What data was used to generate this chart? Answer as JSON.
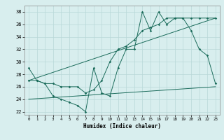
{
  "line1_x": [
    0,
    1,
    2,
    3,
    4,
    5,
    6,
    7,
    8,
    9,
    10,
    11,
    12,
    13,
    14,
    15,
    16,
    17,
    18,
    19,
    20,
    21,
    22,
    23
  ],
  "line1_y": [
    29,
    27,
    26.5,
    24.5,
    24,
    23.5,
    23,
    22,
    29,
    25,
    24.5,
    29,
    32,
    32,
    38,
    35,
    38,
    36,
    37,
    37,
    35,
    32,
    31,
    26.5
  ],
  "line2_x": [
    0,
    1,
    2,
    3,
    4,
    5,
    6,
    7,
    8,
    9,
    10,
    11,
    12,
    13,
    14,
    15,
    16,
    17,
    18,
    19,
    20,
    21,
    22,
    23
  ],
  "line2_y": [
    27,
    27,
    26.5,
    26.5,
    26,
    26,
    26,
    25,
    25.5,
    27,
    30,
    32,
    32.5,
    33.5,
    35,
    35.5,
    36,
    37,
    37,
    37,
    37,
    37,
    37,
    37
  ],
  "line3_x": [
    0,
    23
  ],
  "line3_y": [
    27,
    37
  ],
  "line4_x": [
    0,
    23
  ],
  "line4_y": [
    24,
    26
  ],
  "line_color": "#1a6b5a",
  "bg_color": "#d8eeee",
  "grid_color": "#b8d8d8",
  "xlabel": "Humidex (Indice chaleur)",
  "xlim": [
    -0.5,
    23.5
  ],
  "ylim": [
    21.5,
    39
  ],
  "yticks": [
    22,
    24,
    26,
    28,
    30,
    32,
    34,
    36,
    38
  ],
  "xticks": [
    0,
    1,
    2,
    3,
    4,
    5,
    6,
    7,
    8,
    9,
    10,
    11,
    12,
    13,
    14,
    15,
    16,
    17,
    18,
    19,
    20,
    21,
    22,
    23
  ]
}
